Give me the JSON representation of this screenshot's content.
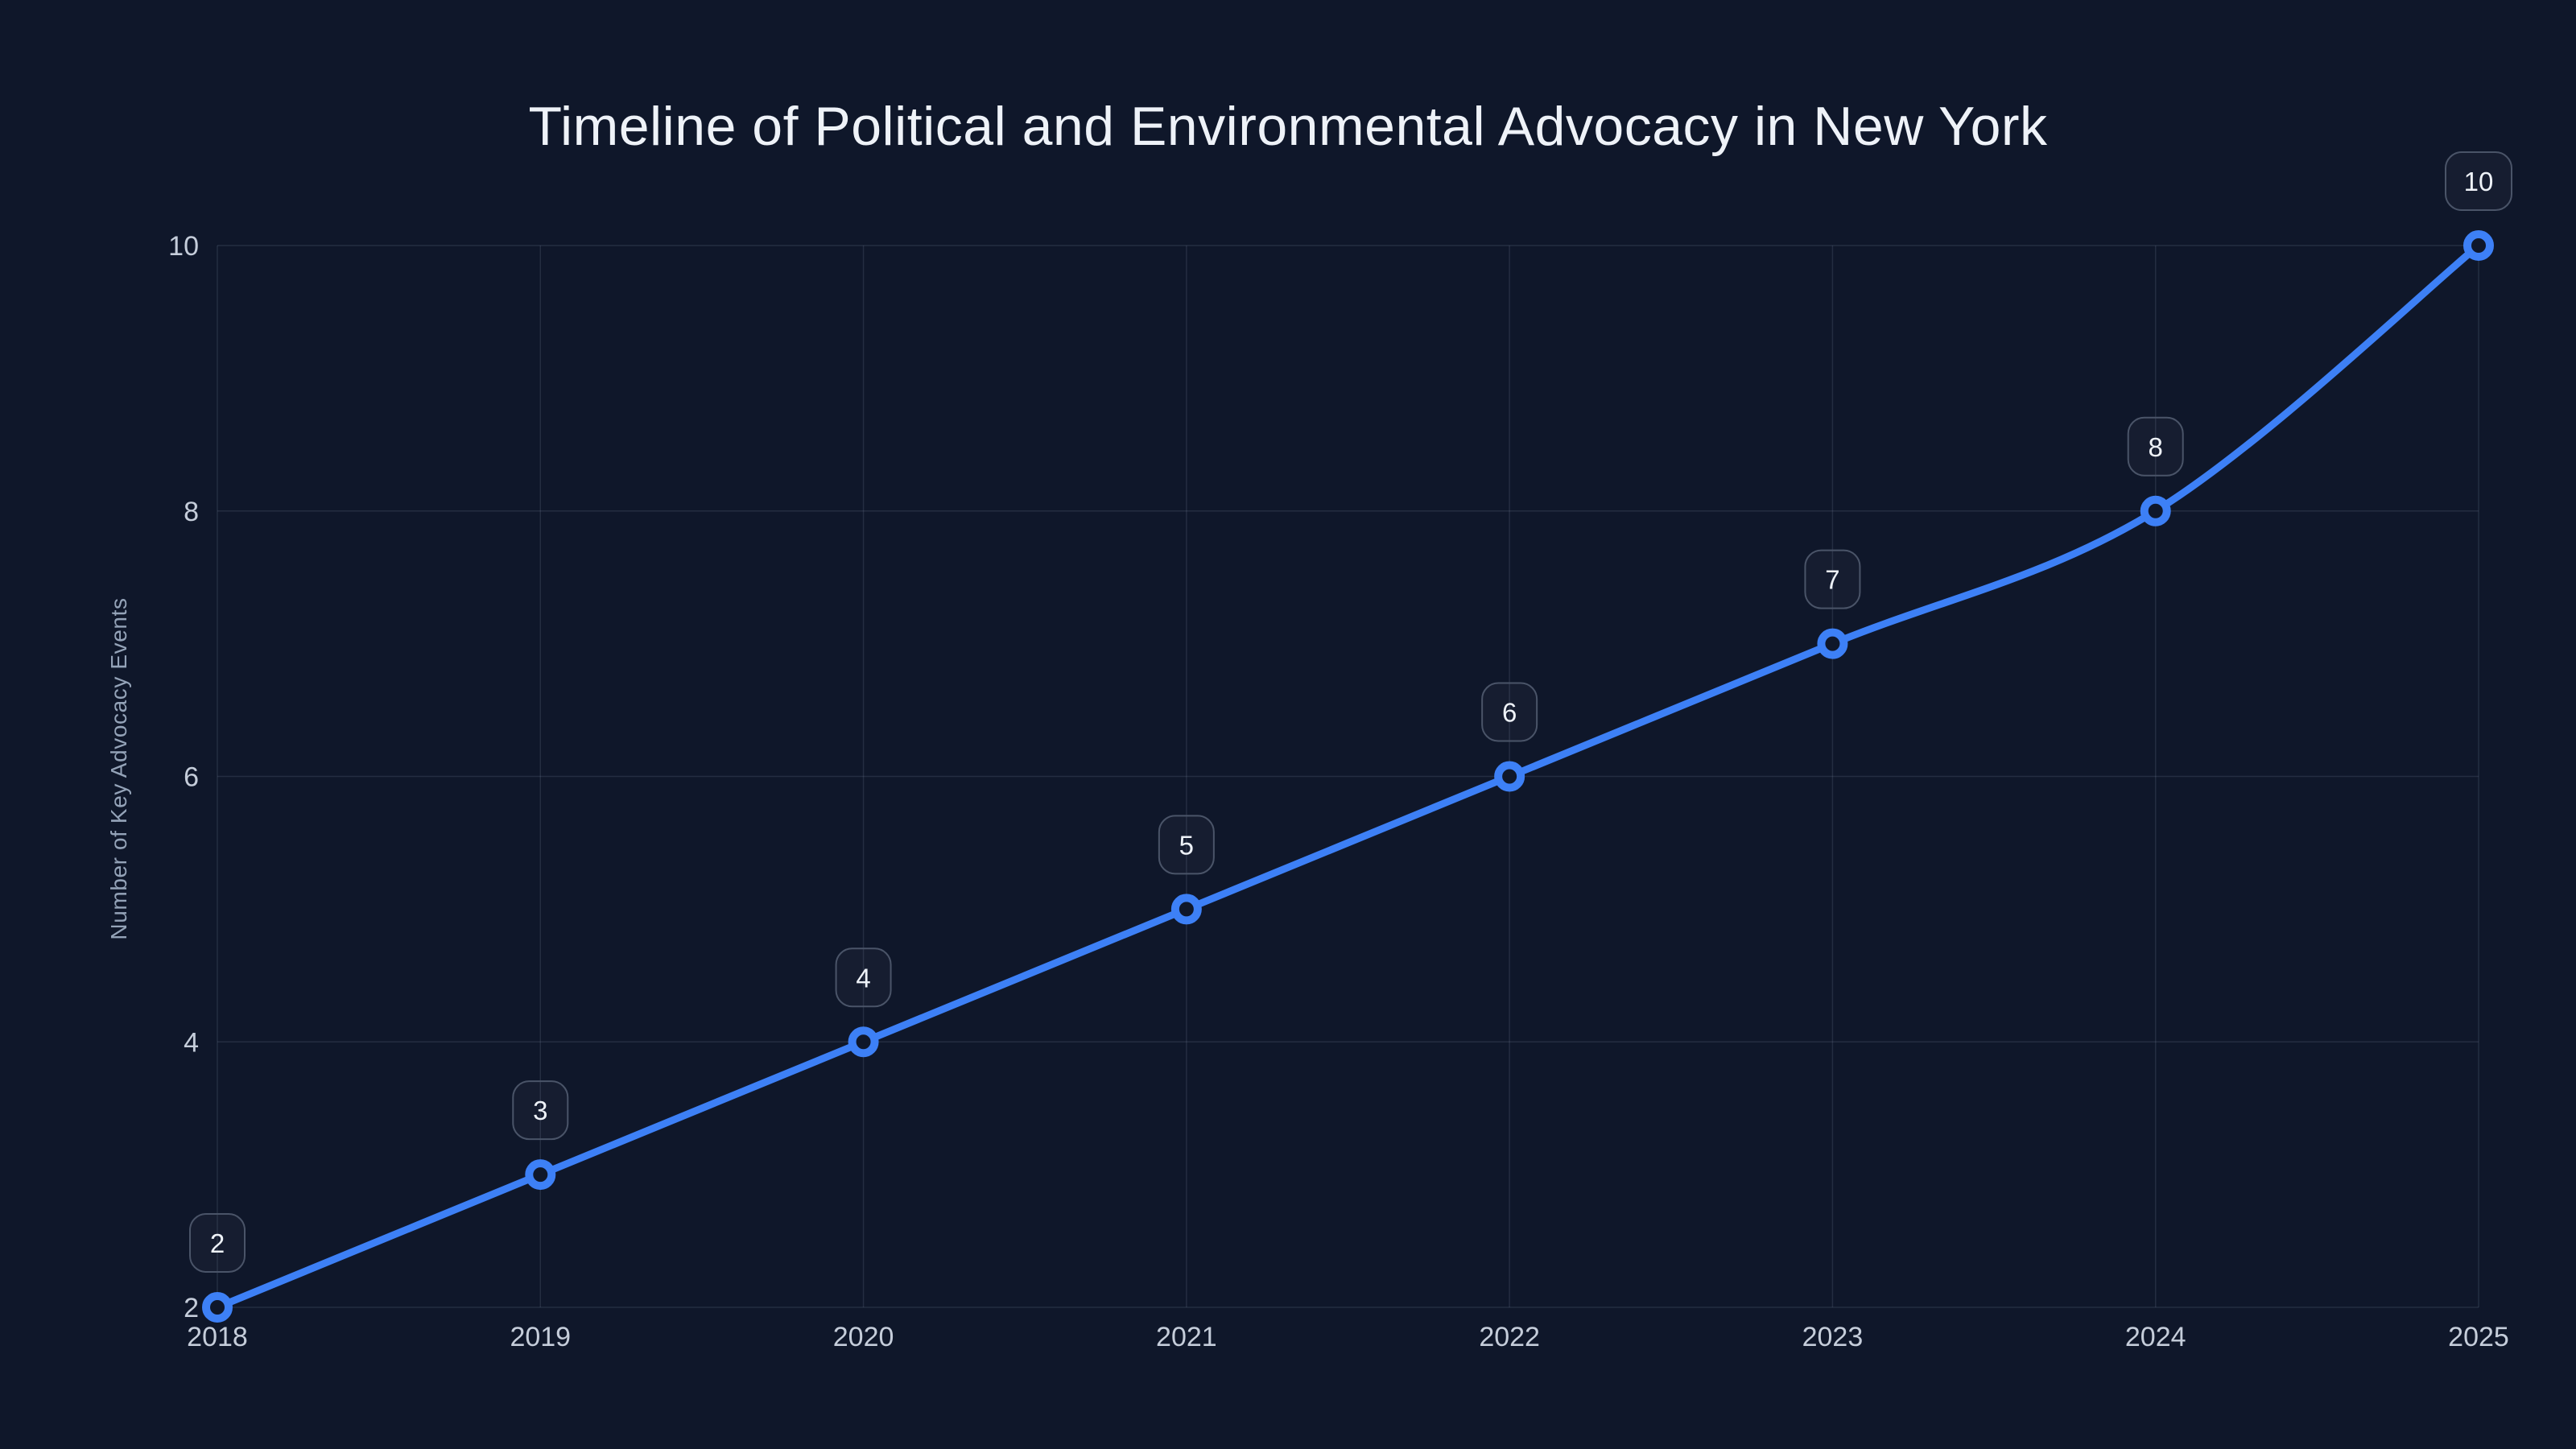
{
  "chart_data": {
    "type": "line",
    "title": "Timeline of Political and Environmental Advocacy in New York",
    "xlabel": "",
    "ylabel": "Number of Key Advocacy Events",
    "x": [
      2018,
      2019,
      2020,
      2021,
      2022,
      2023,
      2024,
      2025
    ],
    "series": [
      {
        "name": "Key Advocacy Events",
        "values": [
          2,
          3,
          4,
          5,
          6,
          7,
          8,
          10
        ]
      }
    ],
    "point_labels": [
      "2",
      "3",
      "4",
      "5",
      "6",
      "7",
      "8",
      "10"
    ],
    "xticks": [
      "2018",
      "2019",
      "2020",
      "2021",
      "2022",
      "2023",
      "2024",
      "2025"
    ],
    "yticks": [
      2,
      4,
      6,
      8,
      10
    ],
    "xlim": [
      2018,
      2025
    ],
    "ylim": [
      2,
      10
    ],
    "grid": true,
    "legend": false,
    "line_shape": "smooth"
  },
  "colors": {
    "background": "#0f172a",
    "line": "#3d80f6",
    "marker_ring": "#3d80f6",
    "marker_fill": "#0f172a",
    "grid": "rgba(148,163,184,0.16)",
    "title": "#eef2f8",
    "tick_label": "#c5cdda",
    "axis_title": "#94a3b8",
    "badge_fill": "rgba(148,163,184,0.05)",
    "badge_border": "#4a5468",
    "badge_text": "#eef2f8"
  }
}
